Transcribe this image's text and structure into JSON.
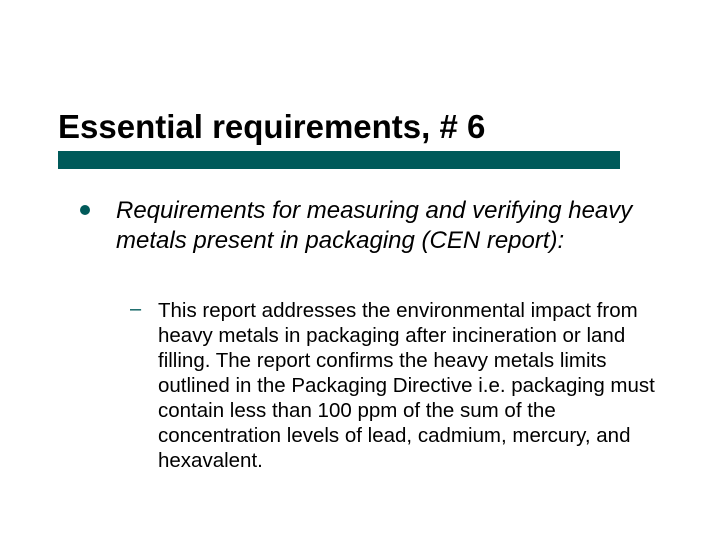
{
  "slide": {
    "title": "Essential requirements, # 6",
    "title_fontsize": 33,
    "title_color": "#000000",
    "underline_color": "#005a5a",
    "underline_width": 562,
    "underline_height": 18,
    "background_color": "#ffffff",
    "bullet_color": "#005a5a",
    "level1": {
      "text": "Requirements for measuring and verifying heavy metals present in packaging (CEN report):",
      "fontsize": 24,
      "italic": true
    },
    "level2": {
      "text": "This report addresses the environmental impact from heavy metals in packaging after incineration or land filling. The report confirms the heavy metals limits outlined in the Packaging Directive i.e. packaging must contain less than 100 ppm of the sum of the concentration levels of lead, cadmium, mercury, and hexavalent.",
      "fontsize": 20.5
    }
  }
}
